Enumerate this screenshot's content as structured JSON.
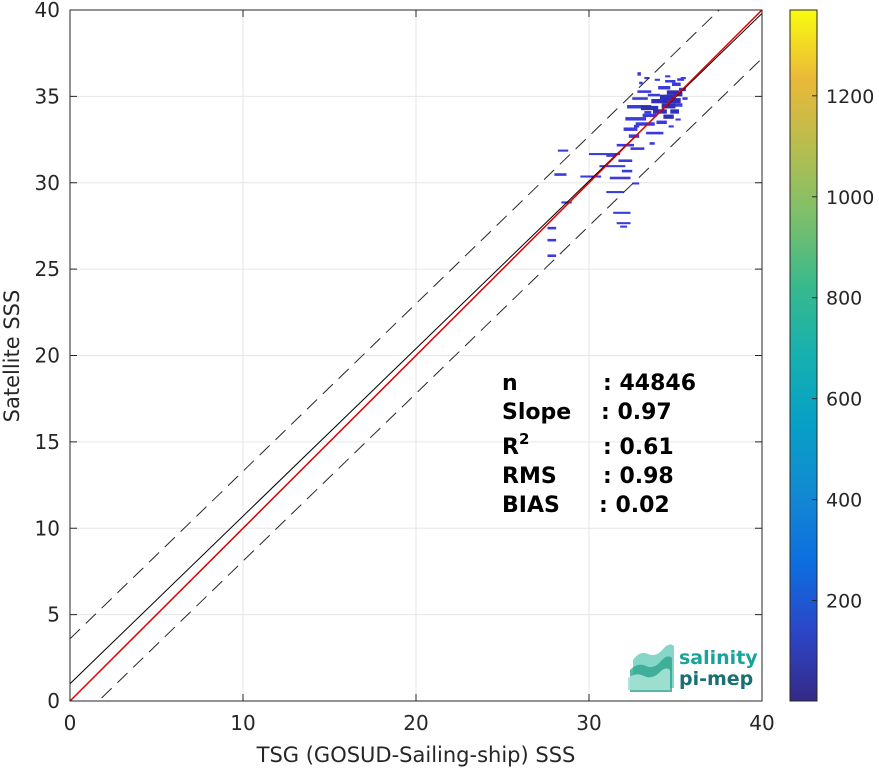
{
  "chart_data": {
    "type": "heatmap",
    "xlabel": "TSG (GOSUD-Sailing-ship) SSS",
    "ylabel": "Satellite SSS",
    "xlim": [
      0,
      40
    ],
    "ylim": [
      0,
      40
    ],
    "xticks": [
      0,
      10,
      20,
      30,
      40
    ],
    "yticks": [
      0,
      5,
      10,
      15,
      20,
      25,
      30,
      35,
      40
    ],
    "grid": true,
    "colorbar": {
      "range": [
        1,
        1370
      ],
      "ticks": [
        200,
        400,
        600,
        800,
        1000,
        1200
      ],
      "colormap": "parula"
    },
    "lines": {
      "identity": {
        "slope": 1,
        "intercept": 0,
        "color": "#e00000"
      },
      "fit": {
        "slope": 0.97,
        "intercept": 1.0,
        "color": "#000000"
      },
      "upper_bound": {
        "slope": 0.97,
        "intercept": 3.6,
        "style": "dashed"
      },
      "lower_bound": {
        "slope": 0.97,
        "intercept": -1.6,
        "style": "dashed"
      }
    },
    "stats": [
      {
        "label": "n",
        "sep": ":",
        "value": "44846"
      },
      {
        "label": "Slope",
        "sep": ":",
        "value": "0.97"
      },
      {
        "label": "R",
        "sup": "2",
        "sep": ":",
        "value": "0.61"
      },
      {
        "label": "RMS",
        "sep": ":",
        "value": "0.98"
      },
      {
        "label": "BIAS",
        "sep": ":",
        "value": "0.02"
      }
    ],
    "bins": [
      [
        27.6,
        27.3,
        0.5,
        0.15
      ],
      [
        27.6,
        26.6,
        0.5,
        0.15
      ],
      [
        27.6,
        25.7,
        0.5,
        0.15
      ],
      [
        28.0,
        30.4,
        0.7,
        0.15
      ],
      [
        28.2,
        31.8,
        0.6,
        0.12
      ],
      [
        28.4,
        28.8,
        0.6,
        0.12
      ],
      [
        29.5,
        30.3,
        1.2,
        0.12
      ],
      [
        30.0,
        31.6,
        1.8,
        0.12
      ],
      [
        30.6,
        30.9,
        1.5,
        0.12
      ],
      [
        31.0,
        29.4,
        1.0,
        0.12
      ],
      [
        31.4,
        28.2,
        1.0,
        0.12
      ],
      [
        31.6,
        27.6,
        0.8,
        0.12
      ],
      [
        31.8,
        27.4,
        0.4,
        0.12
      ],
      [
        31.2,
        30.2,
        1.2,
        0.15
      ],
      [
        31.6,
        32.1,
        1.0,
        0.15
      ],
      [
        31.7,
        31.2,
        0.8,
        0.15
      ],
      [
        31.9,
        30.6,
        0.6,
        0.15
      ],
      [
        32.0,
        33.0,
        0.8,
        0.2
      ],
      [
        32.1,
        33.6,
        1.2,
        0.2
      ],
      [
        32.2,
        34.3,
        1.4,
        0.2
      ],
      [
        32.3,
        32.6,
        0.6,
        0.2
      ],
      [
        32.4,
        31.9,
        0.8,
        0.15
      ],
      [
        32.5,
        34.8,
        0.9,
        0.15
      ],
      [
        32.7,
        33.3,
        1.1,
        0.2
      ],
      [
        32.8,
        35.2,
        0.8,
        0.15
      ],
      [
        33.0,
        34.2,
        1.0,
        0.25
      ],
      [
        33.1,
        33.8,
        0.8,
        0.2
      ],
      [
        33.3,
        32.8,
        0.8,
        0.15
      ],
      [
        33.4,
        35.0,
        0.7,
        0.15
      ],
      [
        33.6,
        34.6,
        1.0,
        0.25
      ],
      [
        33.7,
        34.0,
        0.8,
        0.25
      ],
      [
        33.9,
        33.4,
        0.6,
        0.2
      ],
      [
        34.0,
        35.4,
        0.7,
        0.2
      ],
      [
        34.1,
        34.8,
        0.9,
        0.3
      ],
      [
        34.2,
        34.3,
        0.8,
        0.3
      ],
      [
        34.3,
        33.7,
        0.6,
        0.25
      ],
      [
        34.4,
        35.8,
        0.6,
        0.15
      ],
      [
        34.5,
        35.1,
        0.7,
        0.25
      ],
      [
        34.6,
        34.6,
        0.7,
        0.3
      ],
      [
        34.7,
        34.0,
        0.5,
        0.25
      ],
      [
        34.8,
        35.6,
        0.5,
        0.2
      ],
      [
        34.9,
        35.0,
        0.5,
        0.25
      ],
      [
        35.0,
        34.4,
        0.4,
        0.2
      ],
      [
        35.1,
        35.9,
        0.4,
        0.15
      ],
      [
        35.2,
        35.3,
        0.4,
        0.2
      ],
      [
        35.4,
        34.8,
        0.3,
        0.15
      ],
      [
        32.5,
        29.9,
        0.4,
        0.12
      ],
      [
        31.0,
        31.5,
        0.5,
        0.12
      ],
      [
        33.2,
        36.0,
        0.3,
        0.12
      ],
      [
        32.8,
        36.2,
        0.2,
        0.2
      ],
      [
        32.9,
        35.7,
        0.2,
        0.15
      ],
      [
        33.5,
        32.2,
        0.3,
        0.15
      ],
      [
        33.8,
        35.9,
        0.3,
        0.12
      ],
      [
        34.4,
        36.1,
        0.3,
        0.12
      ],
      [
        35.3,
        36.0,
        0.3,
        0.12
      ],
      [
        34.0,
        32.8,
        0.3,
        0.15
      ],
      [
        33.2,
        34.0,
        0.4,
        0.15
      ],
      [
        32.6,
        33.2,
        0.3,
        0.15
      ],
      [
        34.6,
        33.2,
        0.3,
        0.12
      ],
      [
        35.0,
        33.6,
        0.3,
        0.12
      ]
    ],
    "bin_color": "#3b3bd9",
    "bin_color_dense": "#2f2fb8"
  },
  "logo": {
    "line1": "salinity",
    "line2": "pi-mep",
    "color1": "#1aa39a",
    "color2": "#1a6f73"
  }
}
